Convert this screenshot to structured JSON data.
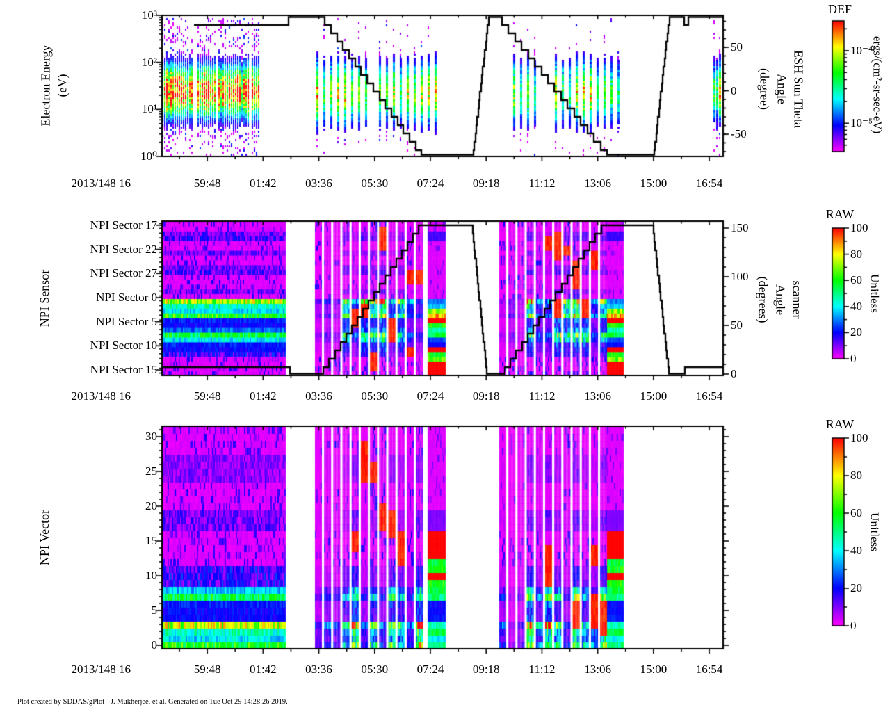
{
  "page": {
    "background": "#FFFFFF"
  },
  "footer": {
    "credit": "Plot created by SDDAS/gPlot - J. Mukherjee, et al.  Generated on Tue Oct 29 14:28:26 2019."
  },
  "colormap": {
    "low_to_high_stops": [
      "#FF00FF",
      "#0000FF",
      "#00FFFF",
      "#00FF00",
      "#FFFF00",
      "#FF0000"
    ],
    "note": "rainbow, low=magenta high=red"
  },
  "x_axis": {
    "label_prefix": "2013/148 16",
    "tick_labels": [
      "59:48",
      "01:42",
      "03:36",
      "05:30",
      "07:24",
      "09:18",
      "11:12",
      "13:06",
      "15:00",
      "16:54"
    ],
    "first_major_frac": 0.0807,
    "major_step_frac": 0.0994
  },
  "chart_data": [
    {
      "id": "electron-energy-spectrogram",
      "type": "heatmap",
      "ylabel_lines": [
        "Electron Energy",
        "(eV)"
      ],
      "y_scale": "log",
      "y_range_eV": [
        1,
        1000
      ],
      "y_tick_labels": [
        "10³",
        "10²",
        "10¹",
        "10⁰"
      ],
      "y_tick_powers": [
        3,
        2,
        1,
        0
      ],
      "band_center_eV": 30,
      "right_axis": {
        "title_lines": [
          "ESH Sun Theta",
          "Angle",
          "(degree)"
        ],
        "tick_labels": [
          "50",
          "0",
          "-50"
        ],
        "tick_values": [
          50,
          0,
          -50
        ],
        "range_deg": [
          -77,
          87
        ]
      },
      "overlay_line": {
        "name": "esh-sun-theta-angle-deg",
        "points_frac_deg": [
          [
            0.056,
            78
          ],
          [
            0.223,
            78
          ],
          [
            0.228,
            87
          ],
          [
            0.2825,
            87
          ],
          [
            0.465,
            -76
          ],
          [
            0.554,
            -76
          ],
          [
            0.5824,
            87
          ],
          [
            0.597,
            87
          ],
          [
            0.796,
            -76
          ],
          [
            0.876,
            -76
          ],
          [
            0.9046,
            87
          ],
          [
            0.9285,
            87
          ],
          [
            0.93,
            78
          ],
          [
            0.9375,
            78
          ],
          [
            0.939,
            87
          ],
          [
            1,
            87
          ]
        ]
      },
      "segments": [
        {
          "type": "dense",
          "f0": 0.0,
          "f1": 0.1722
        },
        {
          "type": "sparse",
          "f0": 0.2751,
          "f1": 0.5043
        },
        {
          "type": "sparse",
          "f0": 0.601,
          "f1": 0.8228
        },
        {
          "type": "cluster",
          "f0": 0.9777,
          "f1": 1.0
        }
      ],
      "colorbar": {
        "title": "DEF",
        "unit": "ergs/(cm²-sr-sec-eV)",
        "scale": "log",
        "ticks": [
          {
            "label": "10⁻⁴",
            "frac": 0.228
          },
          {
            "label": "10⁻⁵",
            "frac": 0.783
          }
        ],
        "range_log10": [
          -3.59,
          -5.39
        ]
      }
    },
    {
      "id": "npi-sensor-spectrogram",
      "type": "heatmap",
      "ylabel": "NPI Sensor",
      "row_order": "sectors 16-31 then 0-15, top to bottom",
      "y_tick_labels": [
        "NPI Sector 17",
        "NPI Sector 22",
        "NPI Sector 27",
        "NPI Sector 0",
        "NPI Sector 5",
        "NPI Sector 10",
        "NPI Sector 15"
      ],
      "y_tick_rows": [
        1,
        6,
        11,
        16,
        21,
        26,
        31
      ],
      "row_base_values": [
        3,
        3,
        10,
        12,
        3,
        3,
        10,
        3,
        3,
        10,
        12,
        3,
        3,
        3,
        10,
        3,
        72,
        45,
        38,
        60,
        22,
        20,
        28,
        55,
        40,
        22,
        20,
        14,
        3,
        3,
        3,
        3
      ],
      "terminal_column_values": [
        3,
        3,
        15,
        15,
        3,
        3,
        3,
        3,
        3,
        3,
        3,
        3,
        3,
        3,
        3,
        3,
        30,
        35,
        70,
        85,
        100,
        60,
        45,
        55,
        25,
        20,
        100,
        60,
        70,
        100,
        100,
        100
      ],
      "right_axis": {
        "title_lines": [
          "scanner",
          "Angle",
          "(degrees)"
        ],
        "tick_labels": [
          "0",
          "50",
          "100",
          "150"
        ],
        "tick_values": [
          0,
          50,
          100,
          150
        ],
        "range_deg": [
          0,
          157
        ]
      },
      "overlay_line": {
        "name": "scanner-angle-deg",
        "points_frac_deg": [
          [
            0,
            8
          ],
          [
            0.223,
            8
          ],
          [
            0.2293,
            0
          ],
          [
            0.284,
            0
          ],
          [
            0.467,
            157
          ],
          [
            0.5514,
            157
          ],
          [
            0.579,
            0
          ],
          [
            0.607,
            0
          ],
          [
            0.792,
            157
          ],
          [
            0.8736,
            157
          ],
          [
            0.9033,
            0
          ],
          [
            0.9306,
            0
          ],
          [
            0.9312,
            8
          ],
          [
            1,
            8
          ]
        ]
      },
      "segments": [
        {
          "type": "block",
          "f0": 0.0,
          "f1": 0.2193
        },
        {
          "type": "stripes",
          "f0": 0.2726,
          "f1": 0.4733
        },
        {
          "type": "terminal",
          "f0": 0.4733,
          "f1": 0.5043
        },
        {
          "type": "stripes",
          "f0": 0.601,
          "f1": 0.7931
        },
        {
          "type": "terminal",
          "f0": 0.7931,
          "f1": 0.8228
        }
      ],
      "colorbar": {
        "title": "RAW",
        "unit": "Unitless",
        "scale": "linear",
        "tick_labels": [
          "100",
          "80",
          "60",
          "40",
          "20",
          "0"
        ],
        "tick_values": [
          100,
          80,
          60,
          40,
          20,
          0
        ],
        "range": [
          0,
          100
        ]
      }
    },
    {
      "id": "npi-vector-spectrogram",
      "type": "heatmap",
      "ylabel": "NPI Vector",
      "rows": 32,
      "y_tick_labels": [
        "30",
        "25",
        "20",
        "15",
        "10",
        "5",
        "0"
      ],
      "y_tick_values": [
        30,
        25,
        20,
        15,
        10,
        5,
        0
      ],
      "row_base_values": [
        3,
        3,
        3,
        3,
        8,
        8,
        8,
        8,
        3,
        3,
        3,
        3,
        10,
        10,
        10,
        3,
        3,
        3,
        3,
        3,
        14,
        14,
        14,
        35,
        55,
        22,
        20,
        20,
        75,
        45,
        38,
        60
      ],
      "terminal_column_values": [
        3,
        3,
        3,
        3,
        3,
        3,
        3,
        3,
        3,
        3,
        3,
        3,
        10,
        10,
        10,
        100,
        100,
        100,
        100,
        55,
        60,
        100,
        60,
        55,
        50,
        20,
        20,
        22,
        45,
        55,
        40,
        50
      ],
      "segments": [
        {
          "type": "block",
          "f0": 0.0,
          "f1": 0.2193
        },
        {
          "type": "stripes",
          "f0": 0.2726,
          "f1": 0.4733
        },
        {
          "type": "terminal",
          "f0": 0.4733,
          "f1": 0.5043
        },
        {
          "type": "stripes",
          "f0": 0.601,
          "f1": 0.7931
        },
        {
          "type": "terminal",
          "f0": 0.7931,
          "f1": 0.8228
        }
      ],
      "colorbar": {
        "title": "RAW",
        "unit": "Unitless",
        "scale": "linear",
        "tick_labels": [
          "100",
          "80",
          "60",
          "40",
          "20",
          "0"
        ],
        "tick_values": [
          100,
          80,
          60,
          40,
          20,
          0
        ],
        "range": [
          0,
          100
        ]
      }
    }
  ]
}
